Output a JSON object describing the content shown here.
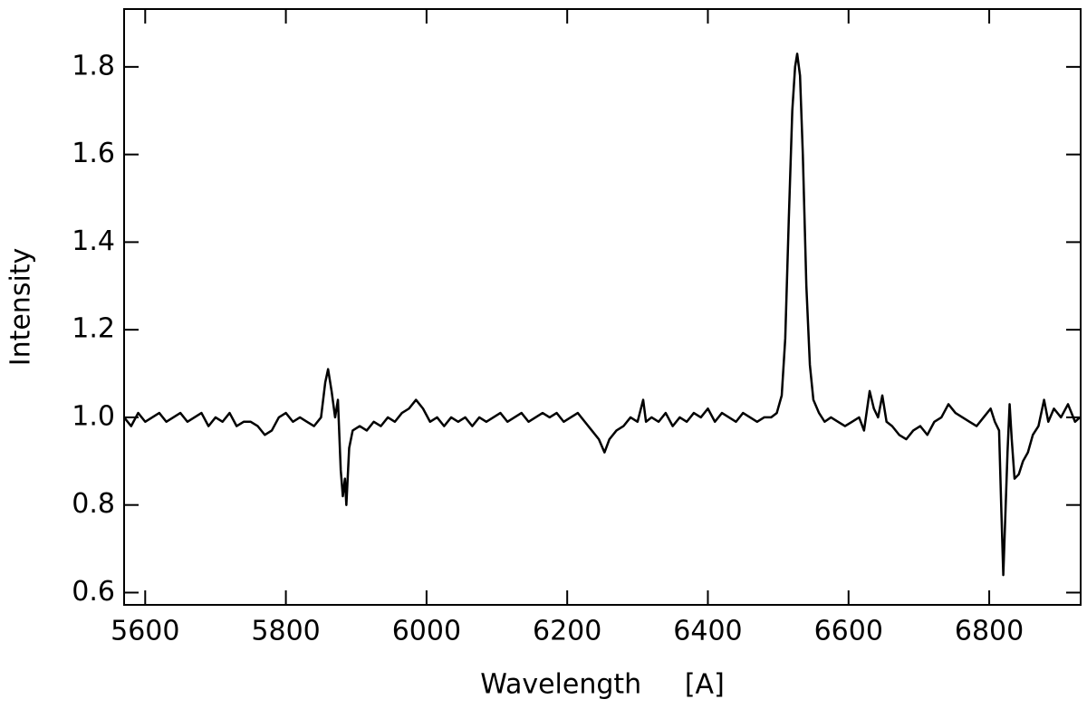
{
  "chart_data": {
    "type": "line",
    "xlabel": "Wavelength     [A]",
    "ylabel": "Intensity",
    "xlim": [
      5570,
      6930
    ],
    "ylim": [
      0.572,
      1.932
    ],
    "xticks": [
      5600,
      5800,
      6000,
      6200,
      6400,
      6600,
      6800
    ],
    "yticks": [
      0.6,
      0.8,
      {
        "value": 1,
        "label": "1.0"
      },
      1.2,
      1.4,
      1.6,
      1.8
    ],
    "series": [
      {
        "color": "#000000",
        "x": [
          5570,
          5580,
          5590,
          5600,
          5610,
          5620,
          5630,
          5640,
          5650,
          5660,
          5670,
          5680,
          5690,
          5700,
          5710,
          5720,
          5730,
          5740,
          5750,
          5760,
          5770,
          5780,
          5790,
          5800,
          5810,
          5820,
          5830,
          5840,
          5850,
          5856,
          5860,
          5865,
          5870,
          5874,
          5878,
          5881,
          5884,
          5886,
          5890,
          5895,
          5905,
          5915,
          5925,
          5935,
          5945,
          5955,
          5965,
          5975,
          5985,
          5995,
          6005,
          6015,
          6025,
          6035,
          6045,
          6055,
          6065,
          6075,
          6085,
          6095,
          6105,
          6115,
          6125,
          6135,
          6145,
          6155,
          6165,
          6175,
          6185,
          6195,
          6205,
          6215,
          6225,
          6235,
          6245,
          6253,
          6260,
          6270,
          6280,
          6290,
          6300,
          6308,
          6312,
          6320,
          6330,
          6340,
          6350,
          6360,
          6370,
          6380,
          6390,
          6400,
          6410,
          6420,
          6430,
          6440,
          6450,
          6460,
          6470,
          6480,
          6490,
          6498,
          6505,
          6510,
          6515,
          6520,
          6524,
          6527,
          6531,
          6535,
          6540,
          6545,
          6550,
          6558,
          6566,
          6575,
          6585,
          6595,
          6605,
          6615,
          6622,
          6630,
          6636,
          6642,
          6648,
          6654,
          6662,
          6672,
          6682,
          6692,
          6702,
          6712,
          6722,
          6732,
          6742,
          6752,
          6762,
          6772,
          6782,
          6792,
          6802,
          6808,
          6814,
          6817,
          6820,
          6823,
          6826,
          6829,
          6832,
          6836,
          6842,
          6848,
          6855,
          6862,
          6870,
          6878,
          6884,
          6892,
          6902,
          6912,
          6922,
          6929
        ],
        "values": [
          1.0,
          0.98,
          1.01,
          0.99,
          1.0,
          1.01,
          0.99,
          1.0,
          1.01,
          0.99,
          1.0,
          1.01,
          0.98,
          1.0,
          0.99,
          1.01,
          0.98,
          0.99,
          0.99,
          0.98,
          0.96,
          0.97,
          1.0,
          1.01,
          0.99,
          1.0,
          0.99,
          0.98,
          1.0,
          1.08,
          1.11,
          1.06,
          1.0,
          1.04,
          0.88,
          0.82,
          0.86,
          0.8,
          0.93,
          0.97,
          0.98,
          0.97,
          0.99,
          0.98,
          1.0,
          0.99,
          1.01,
          1.02,
          1.04,
          1.02,
          0.99,
          1.0,
          0.98,
          1.0,
          0.99,
          1.0,
          0.98,
          1.0,
          0.99,
          1.0,
          1.01,
          0.99,
          1.0,
          1.01,
          0.99,
          1.0,
          1.01,
          1.0,
          1.01,
          0.99,
          1.0,
          1.01,
          0.99,
          0.97,
          0.95,
          0.92,
          0.95,
          0.97,
          0.98,
          1.0,
          0.99,
          1.04,
          0.99,
          1.0,
          0.99,
          1.01,
          0.98,
          1.0,
          0.99,
          1.01,
          1.0,
          1.02,
          0.99,
          1.01,
          1.0,
          0.99,
          1.01,
          1.0,
          0.99,
          1.0,
          1.0,
          1.01,
          1.05,
          1.18,
          1.45,
          1.7,
          1.8,
          1.83,
          1.78,
          1.6,
          1.3,
          1.12,
          1.04,
          1.01,
          0.99,
          1.0,
          0.99,
          0.98,
          0.99,
          1.0,
          0.97,
          1.06,
          1.02,
          1.0,
          1.05,
          0.99,
          0.98,
          0.96,
          0.95,
          0.97,
          0.98,
          0.96,
          0.99,
          1.0,
          1.03,
          1.01,
          1.0,
          0.99,
          0.98,
          1.0,
          1.02,
          0.99,
          0.97,
          0.8,
          0.64,
          0.78,
          0.92,
          1.03,
          0.95,
          0.86,
          0.87,
          0.9,
          0.92,
          0.96,
          0.98,
          1.04,
          0.99,
          1.02,
          1.0,
          1.03,
          0.99,
          1.0
        ]
      }
    ]
  }
}
